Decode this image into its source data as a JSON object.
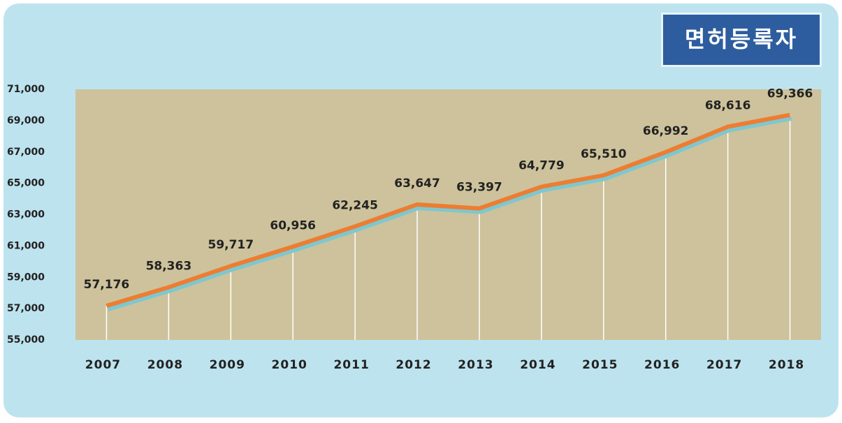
{
  "chart_data": {
    "type": "line",
    "title": "면허등록자",
    "categories": [
      "2007",
      "2008",
      "2009",
      "2010",
      "2011",
      "2012",
      "2013",
      "2014",
      "2015",
      "2016",
      "2017",
      "2018"
    ],
    "series": [
      {
        "name": null,
        "color": "#ed7d31",
        "values": [
          57176,
          58363,
          59717,
          60956,
          62245,
          63647,
          63397,
          64779,
          65510,
          66992,
          68616,
          69366
        ],
        "value_labels": [
          "57,176",
          "58,363",
          "59,717",
          "60,956",
          "62,245",
          "63,647",
          "63,397",
          "64,779",
          "65,510",
          "66,992",
          "68,616",
          "69,366"
        ]
      }
    ],
    "ylim": [
      55000,
      71000
    ],
    "yticks": [
      {
        "value": 55000,
        "label": "55,000"
      },
      {
        "value": 57000,
        "label": "57,000"
      },
      {
        "value": 59000,
        "label": "59,000"
      },
      {
        "value": 61000,
        "label": "61,000"
      },
      {
        "value": 63000,
        "label": "63,000"
      },
      {
        "value": 65000,
        "label": "65,000"
      },
      {
        "value": 67000,
        "label": "67,000"
      },
      {
        "value": 69000,
        "label": "69,000"
      },
      {
        "value": 71000,
        "label": "71,000"
      }
    ],
    "grid": false
  }
}
